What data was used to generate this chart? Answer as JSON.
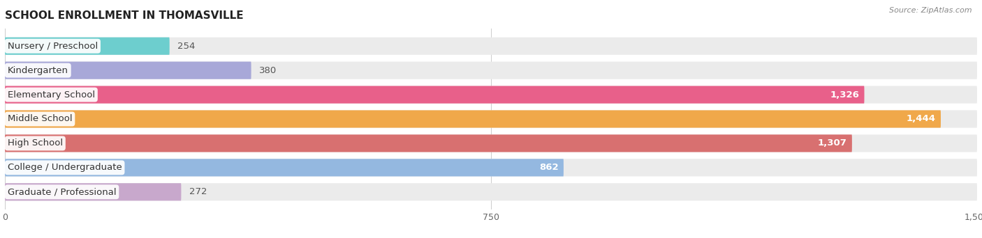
{
  "title": "SCHOOL ENROLLMENT IN THOMASVILLE",
  "source": "Source: ZipAtlas.com",
  "categories": [
    "Nursery / Preschool",
    "Kindergarten",
    "Elementary School",
    "Middle School",
    "High School",
    "College / Undergraduate",
    "Graduate / Professional"
  ],
  "values": [
    254,
    380,
    1326,
    1444,
    1307,
    862,
    272
  ],
  "bar_colors": [
    "#6dcece",
    "#a8a8d8",
    "#e8608a",
    "#f0a84a",
    "#d87070",
    "#94b8e0",
    "#c8a8cc"
  ],
  "bar_bg_color": "#ebebeb",
  "xlim": [
    0,
    1500
  ],
  "xticks": [
    0,
    750,
    1500
  ],
  "label_fontsize": 9.5,
  "title_fontsize": 11,
  "value_label_color_threshold": 500,
  "bar_height": 0.72,
  "fig_width": 14.06,
  "fig_height": 3.42,
  "bg_color": "#ffffff"
}
